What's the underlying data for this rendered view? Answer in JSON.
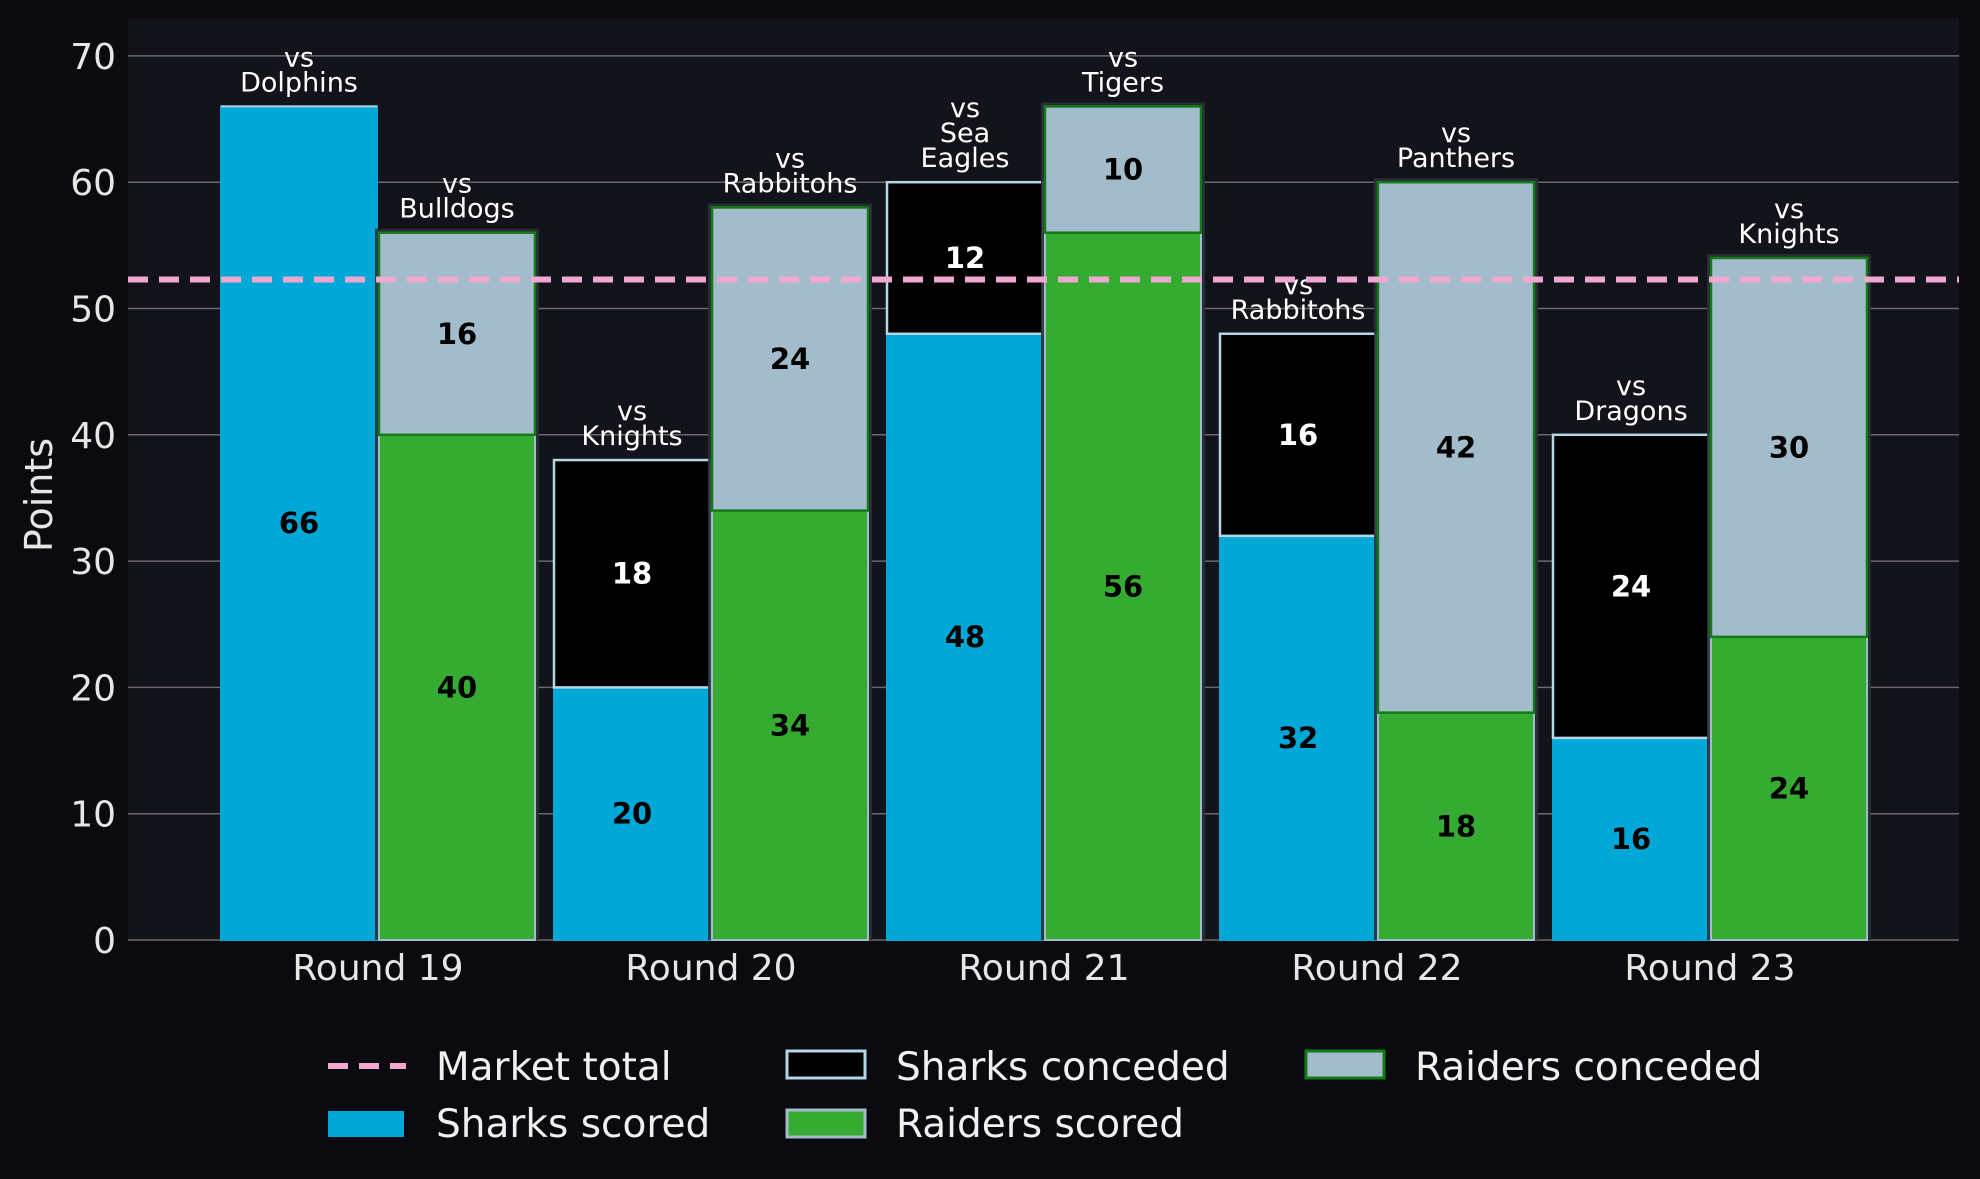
{
  "chart_data": {
    "type": "bar",
    "title": "",
    "xlabel": "",
    "ylabel": "Points",
    "ylim": [
      0,
      73
    ],
    "yticks": [
      0,
      10,
      20,
      30,
      40,
      50,
      60,
      70
    ],
    "grid": "horizontal",
    "categories": [
      "Round 19",
      "Round 20",
      "Round 21",
      "Round 22",
      "Round 23"
    ],
    "market_total": 52.3,
    "teams": [
      {
        "team": "Sharks",
        "opponents": [
          "vs\nDolphins",
          "vs\nKnights",
          "vs\nSea\nEagles",
          "vs\nRabbitohs",
          "vs\nDragons"
        ],
        "scored": [
          66,
          20,
          48,
          32,
          16
        ],
        "conceded": [
          0,
          18,
          12,
          16,
          24
        ],
        "scored_labels": [
          "66",
          "20",
          "48",
          "32",
          "16"
        ],
        "conceded_labels": [
          "",
          "18",
          "12",
          "16",
          "24"
        ]
      },
      {
        "team": "Raiders",
        "opponents": [
          "vs\nBulldogs",
          "vs\nRabbitohs",
          "vs\nTigers",
          "vs\nPanthers",
          "vs\nKnights"
        ],
        "scored": [
          40,
          34,
          56,
          18,
          24
        ],
        "conceded": [
          16,
          24,
          10,
          42,
          30
        ],
        "scored_labels": [
          "40",
          "34",
          "56",
          "18",
          "24"
        ],
        "conceded_labels": [
          "16",
          "24",
          "10",
          "42",
          "30"
        ]
      }
    ],
    "legend": {
      "position": "bottom",
      "entries": [
        "Market total",
        "Sharks scored",
        "Sharks conceded",
        "Raiders scored",
        "Raiders conceded"
      ]
    },
    "colors": {
      "sharks_scored": "#00a8d8",
      "sharks_conceded": "#000000",
      "raiders_scored": "#36ab32",
      "raiders_conceded": "#a2bccb",
      "market_total": "#f0a8d0",
      "plot_bg": "#12131b",
      "grid": "#6a6a6a"
    }
  }
}
